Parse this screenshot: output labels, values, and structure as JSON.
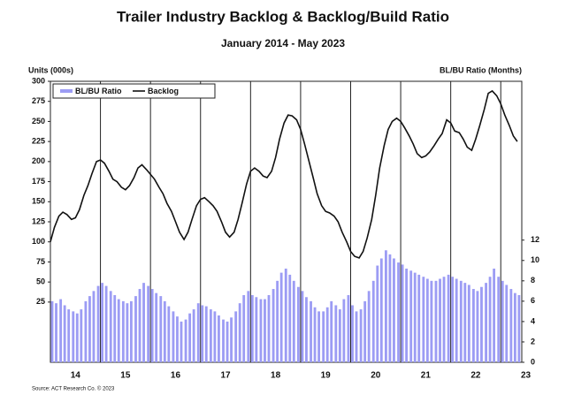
{
  "chart_data": {
    "type": "bar-line",
    "title": "Trailer Industry Backlog & Backlog/Build Ratio",
    "subtitle": "January 2014 - May 2023",
    "y_label": "Units (000s)",
    "y2_label": "BL/BU Ratio (Months)",
    "source": "Source: ACT Research Co. © 2023",
    "legend": "top-left",
    "xlim": [
      2014,
      2023.42
    ],
    "xticks": [
      {
        "value": 2014.5,
        "label": "14"
      },
      {
        "value": 2015.5,
        "label": "15"
      },
      {
        "value": 2016.5,
        "label": "16"
      },
      {
        "value": 2017.5,
        "label": "17"
      },
      {
        "value": 2018.5,
        "label": "18"
      },
      {
        "value": 2019.5,
        "label": "19"
      },
      {
        "value": 2020.5,
        "label": "20"
      },
      {
        "value": 2021.5,
        "label": "21"
      },
      {
        "value": 2022.5,
        "label": "22"
      },
      {
        "value": 2023.5,
        "label": "23"
      }
    ],
    "vlines": [
      2015,
      2016,
      2017,
      2018,
      2019,
      2020,
      2021,
      2022,
      2023
    ],
    "ylim": [
      -50,
      300
    ],
    "yticks": [
      25,
      50,
      75,
      100,
      125,
      150,
      175,
      200,
      225,
      250,
      275,
      300
    ],
    "y2lim": [
      0,
      27.6
    ],
    "y2ticks": [
      0,
      2,
      4,
      6,
      8,
      10,
      12
    ],
    "x": [
      2014.0,
      2014.08,
      2014.17,
      2014.25,
      2014.33,
      2014.42,
      2014.5,
      2014.58,
      2014.67,
      2014.75,
      2014.83,
      2014.92,
      2015.0,
      2015.08,
      2015.17,
      2015.25,
      2015.33,
      2015.42,
      2015.5,
      2015.58,
      2015.67,
      2015.75,
      2015.83,
      2015.92,
      2016.0,
      2016.08,
      2016.17,
      2016.25,
      2016.33,
      2016.42,
      2016.5,
      2016.58,
      2016.67,
      2016.75,
      2016.83,
      2016.92,
      2017.0,
      2017.08,
      2017.17,
      2017.25,
      2017.33,
      2017.42,
      2017.5,
      2017.58,
      2017.67,
      2017.75,
      2017.83,
      2017.92,
      2018.0,
      2018.08,
      2018.17,
      2018.25,
      2018.33,
      2018.42,
      2018.5,
      2018.58,
      2018.67,
      2018.75,
      2018.83,
      2018.92,
      2019.0,
      2019.08,
      2019.17,
      2019.25,
      2019.33,
      2019.42,
      2019.5,
      2019.58,
      2019.67,
      2019.75,
      2019.83,
      2019.92,
      2020.0,
      2020.08,
      2020.17,
      2020.25,
      2020.33,
      2020.42,
      2020.5,
      2020.58,
      2020.67,
      2020.75,
      2020.83,
      2020.92,
      2021.0,
      2021.08,
      2021.17,
      2021.25,
      2021.33,
      2021.42,
      2021.5,
      2021.58,
      2021.67,
      2021.75,
      2021.83,
      2021.92,
      2022.0,
      2022.08,
      2022.17,
      2022.25,
      2022.33,
      2022.42,
      2022.5,
      2022.58,
      2022.67,
      2022.75,
      2022.83,
      2022.92,
      2023.0,
      2023.08,
      2023.17,
      2023.25,
      2023.33
    ],
    "series": [
      {
        "name": "BL/BU Ratio",
        "type": "bar",
        "axis": "y2",
        "color": "#9c9cf4",
        "values": [
          6.0,
          5.8,
          6.2,
          5.6,
          5.2,
          5.0,
          4.8,
          5.2,
          6.0,
          6.5,
          7.0,
          7.5,
          7.8,
          7.5,
          7.0,
          6.6,
          6.2,
          6.0,
          5.8,
          6.0,
          6.5,
          7.2,
          7.8,
          7.5,
          7.2,
          6.8,
          6.5,
          6.0,
          5.5,
          5.0,
          4.5,
          4.0,
          4.2,
          4.8,
          5.2,
          5.8,
          5.6,
          5.5,
          5.2,
          5.0,
          4.6,
          4.2,
          4.0,
          4.4,
          5.0,
          5.8,
          6.6,
          7.0,
          6.6,
          6.4,
          6.2,
          6.2,
          6.6,
          7.2,
          8.0,
          8.8,
          9.2,
          8.6,
          8.0,
          7.4,
          7.0,
          6.4,
          6.0,
          5.4,
          5.0,
          5.0,
          5.4,
          6.0,
          5.6,
          5.2,
          6.2,
          6.6,
          5.6,
          5.0,
          5.2,
          6.0,
          7.0,
          8.0,
          9.5,
          10.2,
          11.0,
          10.6,
          10.2,
          9.8,
          9.6,
          9.2,
          9.0,
          8.8,
          8.6,
          8.4,
          8.2,
          8.0,
          8.0,
          8.2,
          8.4,
          8.6,
          8.4,
          8.2,
          8.0,
          7.8,
          7.6,
          7.2,
          7.0,
          7.4,
          7.8,
          8.4,
          9.2,
          8.4,
          8.0,
          7.6,
          7.2,
          6.8,
          6.6
        ]
      },
      {
        "name": "Backlog",
        "type": "line",
        "color": "#111111",
        "values": [
          100,
          118,
          132,
          137,
          134,
          128,
          130,
          140,
          158,
          170,
          185,
          200,
          202,
          198,
          188,
          178,
          175,
          168,
          165,
          170,
          180,
          192,
          196,
          190,
          184,
          178,
          168,
          160,
          148,
          138,
          125,
          112,
          103,
          112,
          128,
          145,
          153,
          155,
          150,
          145,
          138,
          125,
          112,
          106,
          112,
          128,
          148,
          172,
          188,
          192,
          188,
          182,
          180,
          188,
          205,
          228,
          248,
          258,
          257,
          252,
          240,
          222,
          200,
          180,
          160,
          145,
          138,
          136,
          132,
          125,
          112,
          100,
          88,
          82,
          80,
          88,
          105,
          128,
          158,
          192,
          220,
          240,
          250,
          254,
          250,
          242,
          232,
          222,
          210,
          205,
          207,
          212,
          220,
          228,
          235,
          252,
          248,
          238,
          236,
          228,
          218,
          214,
          228,
          245,
          265,
          285,
          288,
          282,
          272,
          258,
          245,
          232,
          225
        ]
      }
    ]
  }
}
